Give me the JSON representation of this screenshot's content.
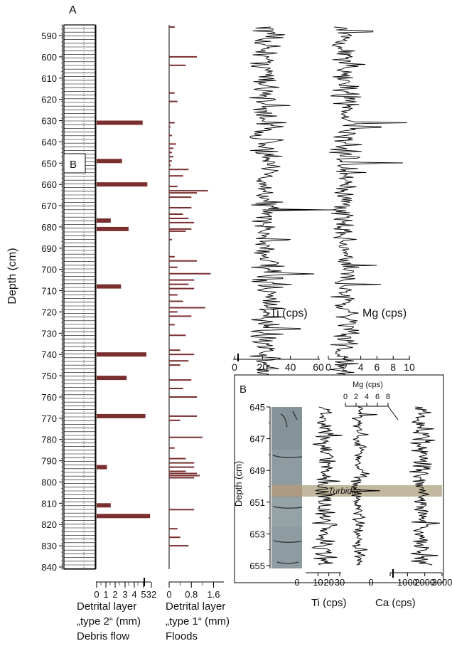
{
  "panel_labels": {
    "a": "A",
    "b_inset_marker": "B",
    "b": "B"
  },
  "colors": {
    "bar": "#7a2e2e",
    "turbidite": "#bfb49a",
    "signal": "#000000",
    "core": "#8d9a9f"
  },
  "main": {
    "depth_label": "Depth (cm)",
    "depth_ticks": [
      "590",
      "600",
      "610",
      "620",
      "630",
      "640",
      "650",
      "660",
      "670",
      "680",
      "690",
      "700",
      "710",
      "720",
      "730",
      "740",
      "750",
      "760",
      "770",
      "780",
      "790",
      "800",
      "810",
      "820",
      "830",
      "840"
    ],
    "type2": {
      "tick_labels": [
        "0",
        "1",
        "2",
        "3",
        "4",
        "5",
        "32"
      ],
      "label1": "Detrital layer",
      "label2": "„type 2“ (mm)",
      "label3": "Debris flow"
    },
    "type1": {
      "tick_labels": [
        "0",
        "0.8",
        "1.6"
      ],
      "label1": "Detrital layer",
      "label2": "„type 1“ (mm)",
      "label3": "Floods"
    },
    "ti": {
      "label": "Ti (cps)",
      "tick_labels": [
        "0",
        "20",
        "40",
        "60"
      ]
    },
    "mg": {
      "label": "Mg (cps)",
      "tick_labels": [
        "0",
        "2",
        "4",
        "6",
        "8",
        "10"
      ]
    }
  },
  "inset": {
    "depth_label": "Depth (cm)",
    "depth_ticks": [
      "645",
      "647",
      "649",
      "651",
      "653",
      "655"
    ],
    "turbidite_label": "Turbidite",
    "mg_label": "Mg (cps)",
    "mg_ticks": [
      "0",
      "2",
      "4",
      "6",
      "8"
    ],
    "ti_label": "Ti (cps)",
    "ti_ticks": [
      "0",
      "10",
      "20",
      "30"
    ],
    "ca_label": "Ca (cps)",
    "ca_ticks": [
      "0",
      "1000",
      "2000",
      "3000"
    ]
  },
  "chart_data": [
    {
      "type": "bar",
      "name": "type2",
      "orientation": "horizontal",
      "y_axis": "depth (cm)",
      "ylim": [
        585,
        842
      ],
      "bars": [
        {
          "depth": 631,
          "value": 4.9
        },
        {
          "depth": 649,
          "value": 2.7
        },
        {
          "depth": 660,
          "value": 5.4
        },
        {
          "depth": 677,
          "value": 1.5
        },
        {
          "depth": 681,
          "value": 3.4
        },
        {
          "depth": 708,
          "value": 2.6
        },
        {
          "depth": 740,
          "value": 5.3
        },
        {
          "depth": 751,
          "value": 3.2
        },
        {
          "depth": 769,
          "value": 5.2
        },
        {
          "depth": 793,
          "value": 1.1
        },
        {
          "depth": 811,
          "value": 1.5
        },
        {
          "depth": 816,
          "value": 5.7
        }
      ]
    },
    {
      "type": "bar",
      "name": "type1",
      "orientation": "horizontal",
      "y_axis": "depth (cm)",
      "ylim": [
        585,
        842
      ],
      "xlim": [
        0,
        2.0
      ],
      "bars": [
        {
          "depth": 586,
          "value": 0.2
        },
        {
          "depth": 600,
          "value": 1.0
        },
        {
          "depth": 604,
          "value": 0.6
        },
        {
          "depth": 617,
          "value": 0.2
        },
        {
          "depth": 621,
          "value": 0.3
        },
        {
          "depth": 631,
          "value": 0.2
        },
        {
          "depth": 633,
          "value": 0.05
        },
        {
          "depth": 637,
          "value": 0.1
        },
        {
          "depth": 641,
          "value": 0.25
        },
        {
          "depth": 643,
          "value": 0.15
        },
        {
          "depth": 645,
          "value": 0.1
        },
        {
          "depth": 647,
          "value": 0.15
        },
        {
          "depth": 649,
          "value": 0.1
        },
        {
          "depth": 651,
          "value": 0.05
        },
        {
          "depth": 653,
          "value": 0.7
        },
        {
          "depth": 656,
          "value": 0.5
        },
        {
          "depth": 661,
          "value": 0.3
        },
        {
          "depth": 663,
          "value": 1.4
        },
        {
          "depth": 664,
          "value": 1.0
        },
        {
          "depth": 666,
          "value": 0.8
        },
        {
          "depth": 671,
          "value": 0.8
        },
        {
          "depth": 674,
          "value": 0.5
        },
        {
          "depth": 676,
          "value": 0.7
        },
        {
          "depth": 678,
          "value": 0.9
        },
        {
          "depth": 681,
          "value": 0.8
        },
        {
          "depth": 682,
          "value": 0.6
        },
        {
          "depth": 686,
          "value": 0.1
        },
        {
          "depth": 694,
          "value": 0.2
        },
        {
          "depth": 696,
          "value": 1.0
        },
        {
          "depth": 699,
          "value": 0.3
        },
        {
          "depth": 702,
          "value": 1.5
        },
        {
          "depth": 705,
          "value": 0.9
        },
        {
          "depth": 707,
          "value": 0.7
        },
        {
          "depth": 709,
          "value": 0.9
        },
        {
          "depth": 712,
          "value": 0.3
        },
        {
          "depth": 715,
          "value": 0.5
        },
        {
          "depth": 718,
          "value": 1.3
        },
        {
          "depth": 720,
          "value": 0.3
        },
        {
          "depth": 722,
          "value": 0.8
        },
        {
          "depth": 726,
          "value": 0.2
        },
        {
          "depth": 731,
          "value": 0.6
        },
        {
          "depth": 738,
          "value": 0.4
        },
        {
          "depth": 740,
          "value": 0.9
        },
        {
          "depth": 743,
          "value": 0.7
        },
        {
          "depth": 745,
          "value": 0.4
        },
        {
          "depth": 752,
          "value": 0.8
        },
        {
          "depth": 756,
          "value": 0.5
        },
        {
          "depth": 760,
          "value": 1.0
        },
        {
          "depth": 769,
          "value": 1.0
        },
        {
          "depth": 771,
          "value": 0.4
        },
        {
          "depth": 779,
          "value": 1.2
        },
        {
          "depth": 784,
          "value": 0.2
        },
        {
          "depth": 789,
          "value": 0.6
        },
        {
          "depth": 791,
          "value": 0.9
        },
        {
          "depth": 793,
          "value": 0.9
        },
        {
          "depth": 795,
          "value": 0.6
        },
        {
          "depth": 796,
          "value": 1.0
        },
        {
          "depth": 797,
          "value": 1.1
        },
        {
          "depth": 798,
          "value": 0.9
        },
        {
          "depth": 813,
          "value": 0.9
        },
        {
          "depth": 822,
          "value": 0.3
        },
        {
          "depth": 826,
          "value": 0.4
        },
        {
          "depth": 830,
          "value": 0.7
        }
      ]
    },
    {
      "type": "line",
      "name": "Ti",
      "y_axis": "depth (cm)",
      "ylim": [
        585,
        842
      ],
      "xlim": [
        0,
        60
      ],
      "summary": {
        "baseline_mean": 22,
        "spread": 8
      },
      "peaks": [
        {
          "depth": 591,
          "value": 35
        },
        {
          "depth": 623,
          "value": 40
        },
        {
          "depth": 631,
          "value": 37
        },
        {
          "depth": 672,
          "value": 82
        },
        {
          "depth": 686,
          "value": 40
        },
        {
          "depth": 702,
          "value": 57
        },
        {
          "depth": 707,
          "value": 41
        },
        {
          "depth": 728,
          "value": 47
        }
      ]
    },
    {
      "type": "line",
      "name": "Mg",
      "y_axis": "depth (cm)",
      "ylim": [
        585,
        842
      ],
      "xlim": [
        0,
        10
      ],
      "summary": {
        "baseline_mean": 2.0,
        "spread": 1.2
      },
      "peaks": [
        {
          "depth": 588,
          "value": 5.5
        },
        {
          "depth": 631,
          "value": 9.7
        },
        {
          "depth": 633,
          "value": 6.5
        },
        {
          "depth": 650,
          "value": 9.2
        },
        {
          "depth": 672,
          "value": 0.5
        },
        {
          "depth": 698,
          "value": 6.0
        },
        {
          "depth": 707,
          "value": 6.5
        }
      ]
    },
    {
      "type": "line",
      "name": "inset Ti",
      "y_axis": "depth (cm)",
      "ylim": [
        645,
        655
      ],
      "xlim": [
        0,
        30
      ],
      "summary": {
        "baseline_mean": 16,
        "spread": 7
      }
    },
    {
      "type": "line",
      "name": "inset Mg",
      "y_axis": "depth (cm)",
      "ylim": [
        645,
        655
      ],
      "xlim": [
        0,
        8
      ],
      "summary": {
        "baseline_mean": 2.5,
        "spread": 1.0
      },
      "peaks": [
        {
          "depth": 645.5,
          "value": 6
        },
        {
          "depth": 650.3,
          "value": 6.5
        }
      ]
    },
    {
      "type": "line",
      "name": "inset Ca",
      "y_axis": "depth (cm)",
      "ylim": [
        645,
        655
      ],
      "xlim": [
        0,
        3000
      ],
      "summary": {
        "baseline_mean": 1800,
        "spread": 450
      },
      "turbidite_depth": [
        650.0,
        650.6
      ]
    }
  ]
}
